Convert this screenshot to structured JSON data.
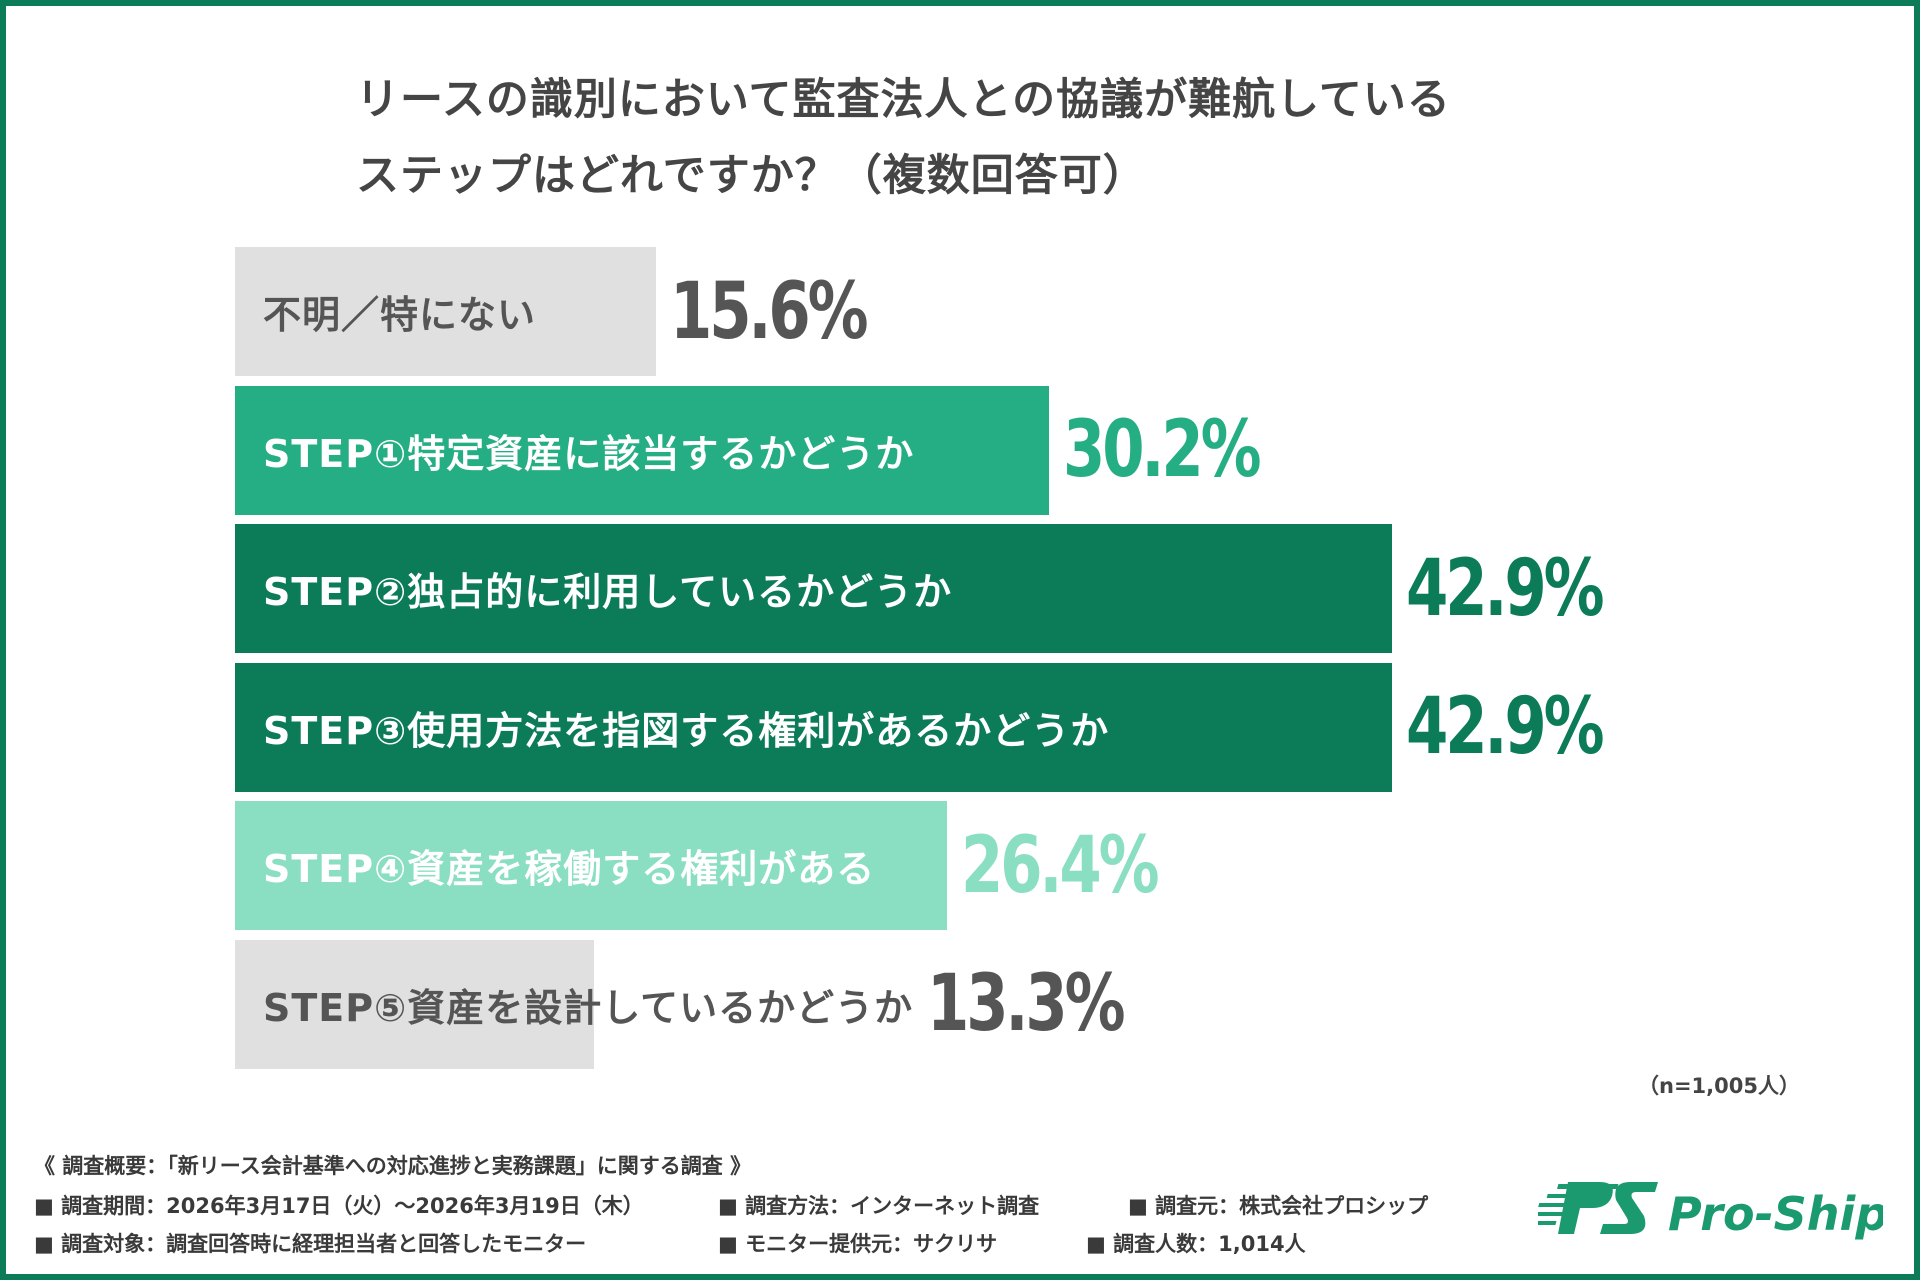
{
  "chart_data": {
    "type": "bar",
    "orientation": "horizontal",
    "title": "リースの識別において監査法人との協議が難航しているステップはどれですか？（複数回答可）",
    "title_lines": [
      "リースの識別において監査法人との協議が難航している",
      "ステップはどれですか？（複数回答可）"
    ],
    "categories": [
      "不明／特にない",
      "STEP①特定資産に該当するかどうか",
      "STEP②独占的に利用しているかどうか",
      "STEP③使用方法を指図する権利があるかどうか",
      "STEP④資産を稼働する権利がある",
      "STEP⑤資産を設計しているかどうか"
    ],
    "values": [
      15.6,
      30.2,
      42.9,
      42.9,
      26.4,
      13.3
    ],
    "value_labels": [
      "15.6%",
      "30.2%",
      "42.9%",
      "42.9%",
      "26.4%",
      "13.3%"
    ],
    "unit": "%",
    "bar_colors": [
      "#e0e0e0",
      "#25ae83",
      "#0b7b58",
      "#0b7b58",
      "#8adec1",
      "#e0e0e0"
    ],
    "label_colors": [
      "#555555",
      "#ffffff",
      "#ffffff",
      "#ffffff",
      "#ffffff",
      "#555555"
    ],
    "value_colors": [
      "#555555",
      "#25ae83",
      "#0b7b58",
      "#0b7b58",
      "#8adec1",
      "#555555"
    ],
    "xlim": [
      0,
      42.9
    ],
    "grid": false,
    "note": "（n=1,005人）"
  },
  "footer": {
    "heading": "《 調査概要：「新リース会計基準への対応進捗と実務課題」に関する調査 》",
    "items": [
      "■ 調査期間：2026年3月17日（火）～2026年3月19日（木）",
      "■ 調査方法：インターネット調査",
      "■ 調査元：株式会社プロシップ",
      "■ 調査対象：調査回答時に経理担当者と回答したモニター",
      "■ モニター提供元：サクリサ",
      "■ 調査人数：1,014人"
    ]
  },
  "logo": {
    "text": "Pro-Ship",
    "mark": "PS"
  },
  "colors": {
    "border": "#0b7b58",
    "brand": "#1a9a6e"
  }
}
